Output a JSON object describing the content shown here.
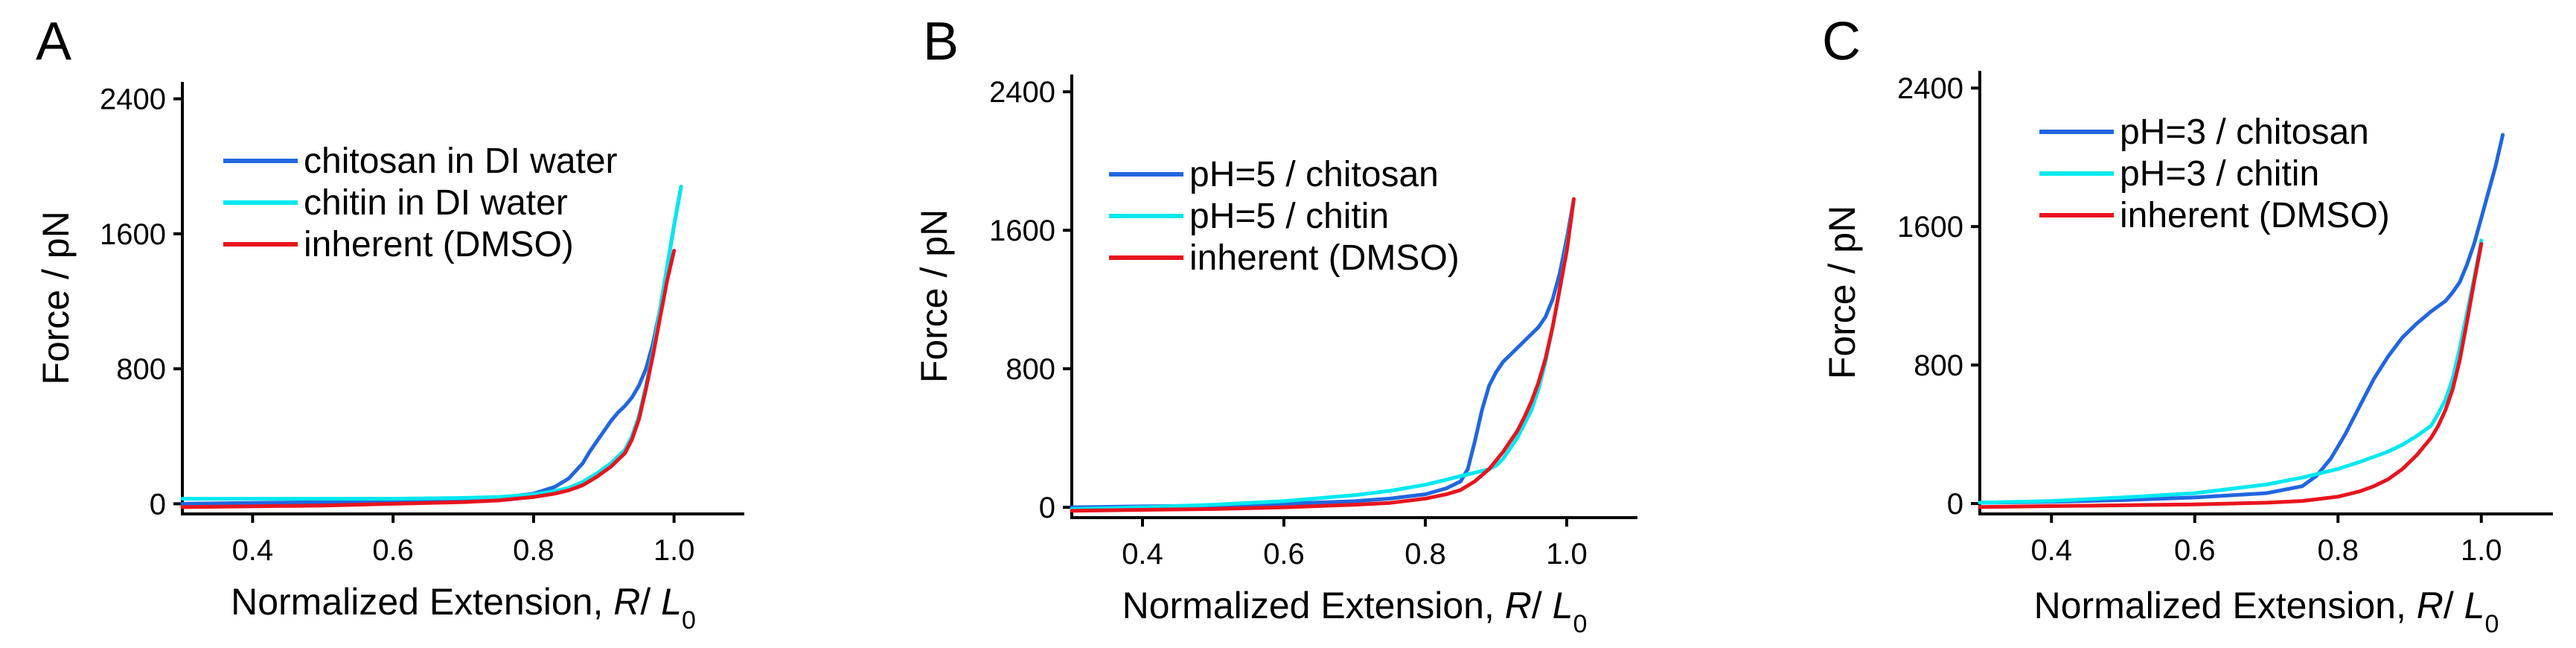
{
  "figure_title": "",
  "chart_data": [
    {
      "type": "line",
      "panel": "A",
      "title": "",
      "xlabel": "Normalized Extension, R/ L0",
      "xlabel_parts": {
        "prefix": "Normalized Extension, ",
        "var": "R",
        "sep": "/ ",
        "var2": "L",
        "sub": "0"
      },
      "ylabel": "Force / pN",
      "xlim": [
        0.3,
        1.1
      ],
      "ylim": [
        -60,
        2500
      ],
      "xticks": [
        0.4,
        0.6,
        0.8,
        1.0
      ],
      "xtick_labels": [
        "0.4",
        "0.6",
        "0.8",
        "1.0"
      ],
      "yticks": [
        0,
        800,
        1600,
        2400
      ],
      "ytick_labels": [
        "0",
        "800",
        "1600",
        "2400"
      ],
      "legend_position": "top-left",
      "series": [
        {
          "name": "chitosan in DI water",
          "color": "#2166e0",
          "x": [
            0.3,
            0.4,
            0.5,
            0.6,
            0.7,
            0.75,
            0.8,
            0.83,
            0.85,
            0.87,
            0.88,
            0.89,
            0.9,
            0.91,
            0.92,
            0.93,
            0.94,
            0.95,
            0.96,
            0.97,
            0.98,
            0.99,
            1.0,
            1.01
          ],
          "y": [
            0,
            5,
            10,
            15,
            25,
            35,
            60,
            100,
            150,
            240,
            310,
            370,
            430,
            490,
            540,
            580,
            630,
            700,
            800,
            950,
            1150,
            1400,
            1650,
            1880
          ]
        },
        {
          "name": "chitin in DI water",
          "color": "#00e8f0",
          "x": [
            0.3,
            0.4,
            0.5,
            0.6,
            0.7,
            0.75,
            0.8,
            0.83,
            0.85,
            0.87,
            0.89,
            0.91,
            0.93,
            0.94,
            0.95,
            0.96,
            0.97,
            0.98,
            0.99,
            1.0,
            1.01
          ],
          "y": [
            30,
            30,
            30,
            30,
            35,
            40,
            55,
            75,
            95,
            130,
            180,
            240,
            320,
            400,
            520,
            700,
            900,
            1150,
            1400,
            1650,
            1880
          ]
        },
        {
          "name": "inherent (DMSO)",
          "color": "#e8141e",
          "x": [
            0.3,
            0.4,
            0.5,
            0.6,
            0.7,
            0.75,
            0.8,
            0.83,
            0.85,
            0.87,
            0.89,
            0.91,
            0.93,
            0.94,
            0.95,
            0.96,
            0.97,
            0.98,
            0.99,
            1.0
          ],
          "y": [
            -20,
            -15,
            -10,
            0,
            10,
            20,
            40,
            60,
            80,
            110,
            160,
            220,
            300,
            380,
            500,
            680,
            880,
            1100,
            1320,
            1500
          ]
        }
      ]
    },
    {
      "type": "line",
      "panel": "B",
      "title": "",
      "xlabel": "Normalized Extension, R/ L0",
      "xlabel_parts": {
        "prefix": "Normalized Extension, ",
        "var": "R",
        "sep": "/ ",
        "var2": "L",
        "sub": "0"
      },
      "ylabel": "Force / pN",
      "xlim": [
        0.3,
        1.1
      ],
      "ylim": [
        -60,
        2500
      ],
      "xticks": [
        0.4,
        0.6,
        0.8,
        1.0
      ],
      "xtick_labels": [
        "0.4",
        "0.6",
        "0.8",
        "1.0"
      ],
      "yticks": [
        0,
        800,
        1600,
        2400
      ],
      "ytick_labels": [
        "0",
        "800",
        "1600",
        "2400"
      ],
      "legend_position": "top-left",
      "series": [
        {
          "name": "pH=5 / chitosan",
          "color": "#2166e0",
          "x": [
            0.3,
            0.4,
            0.5,
            0.6,
            0.7,
            0.75,
            0.8,
            0.83,
            0.85,
            0.86,
            0.87,
            0.88,
            0.89,
            0.9,
            0.91,
            0.92,
            0.93,
            0.94,
            0.95,
            0.96,
            0.97,
            0.98,
            0.99,
            1.0,
            1.01
          ],
          "y": [
            0,
            5,
            10,
            20,
            35,
            50,
            75,
            110,
            150,
            220,
            380,
            560,
            700,
            780,
            840,
            880,
            920,
            960,
            1000,
            1040,
            1100,
            1200,
            1350,
            1550,
            1780
          ]
        },
        {
          "name": "pH=5 / chitin",
          "color": "#00e8f0",
          "x": [
            0.3,
            0.4,
            0.5,
            0.6,
            0.7,
            0.75,
            0.8,
            0.83,
            0.85,
            0.87,
            0.89,
            0.9,
            0.91,
            0.92,
            0.93,
            0.94,
            0.95,
            0.96,
            0.97,
            0.98,
            0.99,
            1.0,
            1.01
          ],
          "y": [
            -10,
            0,
            15,
            35,
            70,
            95,
            130,
            160,
            180,
            200,
            220,
            240,
            280,
            340,
            400,
            480,
            560,
            680,
            840,
            1040,
            1250,
            1500,
            1780
          ]
        },
        {
          "name": "inherent (DMSO)",
          "color": "#e8141e",
          "x": [
            0.3,
            0.4,
            0.5,
            0.6,
            0.7,
            0.75,
            0.8,
            0.83,
            0.85,
            0.87,
            0.89,
            0.91,
            0.92,
            0.93,
            0.94,
            0.95,
            0.96,
            0.97,
            0.98,
            0.99,
            1.0,
            1.01
          ],
          "y": [
            -20,
            -15,
            -10,
            0,
            15,
            25,
            50,
            75,
            100,
            150,
            220,
            320,
            380,
            440,
            520,
            610,
            720,
            860,
            1040,
            1260,
            1480,
            1780
          ]
        }
      ]
    },
    {
      "type": "line",
      "panel": "C",
      "title": "",
      "xlabel": "Normalized Extension, R/ L0",
      "xlabel_parts": {
        "prefix": "Normalized Extension, ",
        "var": "R",
        "sep": "/ ",
        "var2": "L",
        "sub": "0"
      },
      "ylabel": "Force / pN",
      "xlim": [
        0.3,
        1.1
      ],
      "ylim": [
        -60,
        2500
      ],
      "xticks": [
        0.4,
        0.6,
        0.8,
        1.0
      ],
      "xtick_labels": [
        "0.4",
        "0.6",
        "0.8",
        "1.0"
      ],
      "yticks": [
        0,
        800,
        1600,
        2400
      ],
      "ytick_labels": [
        "0",
        "800",
        "1600",
        "2400"
      ],
      "legend_position": "top-left",
      "series": [
        {
          "name": "pH=3 / chitosan",
          "color": "#2166e0",
          "x": [
            0.3,
            0.4,
            0.5,
            0.6,
            0.7,
            0.75,
            0.77,
            0.79,
            0.81,
            0.83,
            0.85,
            0.87,
            0.89,
            0.91,
            0.93,
            0.95,
            0.96,
            0.97,
            0.98,
            0.99,
            1.0,
            1.01,
            1.02,
            1.03
          ],
          "y": [
            5,
            10,
            20,
            35,
            60,
            100,
            160,
            260,
            400,
            560,
            720,
            850,
            960,
            1040,
            1110,
            1170,
            1220,
            1280,
            1380,
            1500,
            1650,
            1800,
            1950,
            2130
          ]
        },
        {
          "name": "pH=3 / chitin",
          "color": "#00e8f0",
          "x": [
            0.3,
            0.4,
            0.5,
            0.6,
            0.7,
            0.75,
            0.8,
            0.83,
            0.85,
            0.87,
            0.89,
            0.91,
            0.93,
            0.94,
            0.95,
            0.96,
            0.97,
            0.98,
            0.99,
            1.0
          ],
          "y": [
            5,
            15,
            35,
            60,
            110,
            150,
            200,
            240,
            270,
            300,
            340,
            390,
            450,
            520,
            600,
            720,
            900,
            1100,
            1300,
            1520
          ]
        },
        {
          "name": "inherent (DMSO)",
          "color": "#e8141e",
          "x": [
            0.3,
            0.4,
            0.5,
            0.6,
            0.7,
            0.75,
            0.8,
            0.83,
            0.85,
            0.87,
            0.89,
            0.91,
            0.93,
            0.94,
            0.95,
            0.96,
            0.97,
            0.98,
            0.99,
            1.0
          ],
          "y": [
            -20,
            -15,
            -10,
            -5,
            5,
            15,
            40,
            70,
            100,
            140,
            200,
            280,
            380,
            450,
            540,
            660,
            830,
            1050,
            1280,
            1500
          ]
        }
      ]
    }
  ]
}
